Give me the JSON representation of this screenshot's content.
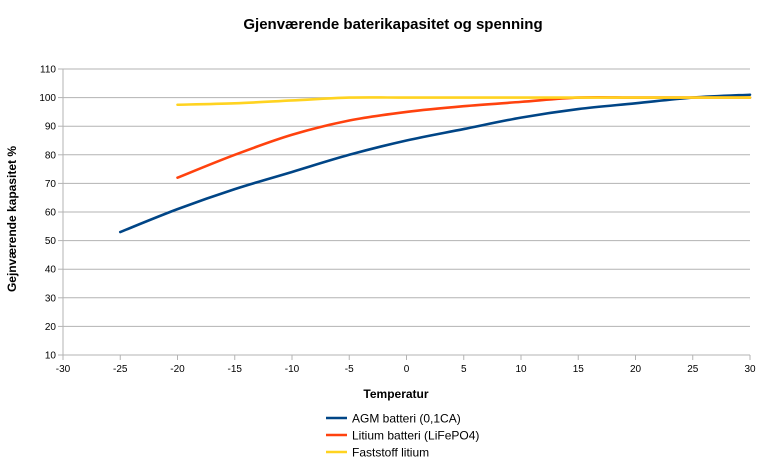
{
  "chart_data": {
    "type": "line",
    "title": "Gjenværende baterikapasitet og spenning",
    "xlabel": "Temperatur",
    "ylabel": "Gejnværende kapasitet %",
    "xlim": [
      -30,
      30
    ],
    "ylim": [
      10,
      110
    ],
    "xticks": [
      -30,
      -25,
      -20,
      -15,
      -10,
      -5,
      0,
      5,
      10,
      15,
      20,
      25,
      30
    ],
    "yticks": [
      10,
      20,
      30,
      40,
      50,
      60,
      70,
      80,
      90,
      100,
      110
    ],
    "grid": "horizontal",
    "legend_position": "bottom",
    "series": [
      {
        "name": "AGM batteri (0,1CA)",
        "color": "#004586",
        "x": [
          -25,
          -20,
          -15,
          -10,
          -5,
          0,
          5,
          10,
          15,
          20,
          25,
          30
        ],
        "y": [
          53,
          61,
          68,
          74,
          80,
          85,
          89,
          93,
          96,
          98,
          100,
          101
        ]
      },
      {
        "name": "Litium batteri (LiFePO4)",
        "color": "#ff420e",
        "x": [
          -20,
          -15,
          -10,
          -5,
          0,
          5,
          10,
          15,
          20,
          25,
          30
        ],
        "y": [
          72,
          80,
          87,
          92,
          95,
          97,
          98.5,
          100,
          100,
          100,
          100
        ]
      },
      {
        "name": "Faststoff litium",
        "color": "#ffd320",
        "x": [
          -20,
          -15,
          -10,
          -5,
          0,
          5,
          10,
          15,
          20,
          25,
          30
        ],
        "y": [
          97.5,
          98,
          99,
          100,
          100,
          100,
          100,
          100,
          100,
          100,
          100
        ]
      }
    ]
  }
}
